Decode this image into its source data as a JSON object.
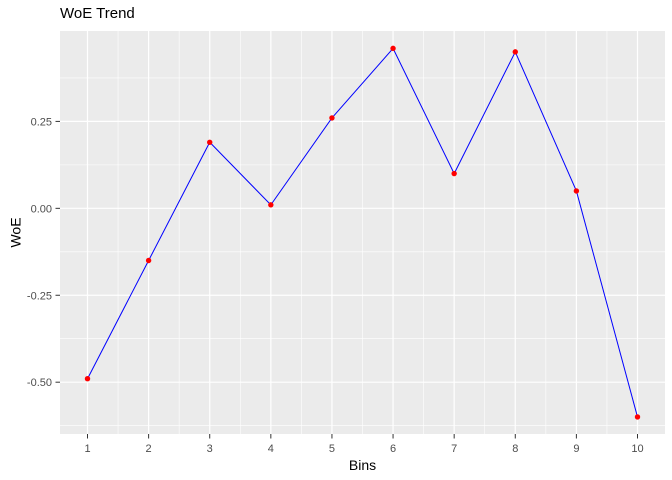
{
  "title": "WoE Trend",
  "chart_data": {
    "type": "line",
    "title": "WoE Trend",
    "xlabel": "Bins",
    "ylabel": "WoE",
    "x": [
      1,
      2,
      3,
      4,
      5,
      6,
      7,
      8,
      9,
      10
    ],
    "y": [
      -0.49,
      -0.15,
      0.19,
      0.01,
      0.26,
      0.46,
      0.1,
      0.45,
      0.05,
      -0.6
    ],
    "x_ticks": [
      "1",
      "2",
      "3",
      "4",
      "5",
      "6",
      "7",
      "8",
      "9",
      "10"
    ],
    "y_ticks": [
      {
        "value": 0.25,
        "label": "0.25"
      },
      {
        "value": 0.0,
        "label": "0.00"
      },
      {
        "value": -0.25,
        "label": "-0.25"
      },
      {
        "value": -0.5,
        "label": "-0.50"
      }
    ],
    "x_minor": [
      1.5,
      2.5,
      3.5,
      4.5,
      5.5,
      6.5,
      7.5,
      8.5,
      9.5
    ],
    "y_minor": [
      0.375,
      0.125,
      -0.125,
      -0.375,
      -0.625
    ],
    "xlim": [
      0.55,
      10.45
    ],
    "ylim": [
      -0.649,
      0.51
    ],
    "grid": true,
    "legend": "none",
    "style": {
      "panel_bg": "#EBEBEB",
      "grid_color": "#FFFFFF",
      "line_color": "#0000FF",
      "point_color": "#FF0000",
      "tick_color": "#333333",
      "axis_text_color": "#4D4D4D",
      "title_color": "#000000"
    }
  }
}
